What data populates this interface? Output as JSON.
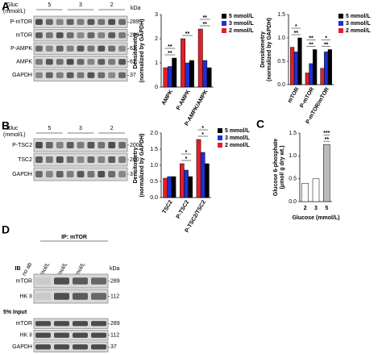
{
  "panels": [
    "A",
    "B",
    "C",
    "D"
  ],
  "blot_a": {
    "header": [
      "Gluc",
      "(mmol/L)"
    ],
    "lanes": [
      "5",
      "3",
      "2"
    ],
    "unit": "kDa",
    "rows": [
      {
        "label": "P-mTOR",
        "marker": 289
      },
      {
        "label": "mTOR",
        "marker": 289
      },
      {
        "label": "P-AMPK",
        "marker": 62
      },
      {
        "label": "AMPK",
        "marker": 62
      },
      {
        "label": "GAPDH",
        "marker": 37
      }
    ]
  },
  "blot_b": {
    "header": [
      "Gluc",
      "(mmol/L)"
    ],
    "lanes": [
      "5",
      "3",
      "2"
    ],
    "rows": [
      {
        "label": "P-TSC2",
        "marker": 200
      },
      {
        "label": "TSC2",
        "marker": 200
      },
      {
        "label": "GAPDH",
        "marker": 37
      }
    ]
  },
  "blot_d": {
    "ip": "IP: mTOR",
    "ib": "IB",
    "unit": "kDa",
    "lanes": [
      "no ab",
      "5 mmol/L",
      "3 mmol/L",
      "2 mmol/L"
    ],
    "rows": [
      {
        "label": "mTOR",
        "marker": 289
      },
      {
        "label": "HK II",
        "marker": 112
      }
    ],
    "input": "5% Input",
    "input_rows": [
      {
        "label": "mTOR",
        "marker": 289
      },
      {
        "label": "HK II",
        "marker": 112
      },
      {
        "label": "GAPDH",
        "marker": 37
      }
    ]
  },
  "chart_data": [
    {
      "type": "bar",
      "ylabel": [
        "Densitometry",
        "(normalized by GAPDH)"
      ],
      "categories": [
        "AMPK",
        "P-AMPK",
        "P-AMPK/AMPK"
      ],
      "series": [
        {
          "name": "5 mmol/L",
          "color": "#000000",
          "values": [
            1.2,
            1.1,
            0.8
          ]
        },
        {
          "name": "3 mmol/L",
          "color": "#1f2fd6",
          "values": [
            0.85,
            1.0,
            1.1
          ]
        },
        {
          "name": "2 mmol/L",
          "color": "#e0202a",
          "values": [
            0.8,
            2.0,
            2.4
          ]
        }
      ],
      "ylim": [
        0,
        3
      ],
      "yticks": [
        0,
        1,
        2,
        3
      ],
      "annotations": [
        {
          "text": "**",
          "category": 0
        },
        {
          "text": "**",
          "category": 0
        },
        {
          "text": "**",
          "category": 1
        },
        {
          "text": "**",
          "category": 2
        },
        {
          "text": "**",
          "category": 2
        }
      ]
    },
    {
      "type": "bar",
      "ylabel": [
        "Densitometry",
        "(normalized by GAPDH)"
      ],
      "categories": [
        "mTOR",
        "P-mTOR",
        "P-mTOR/mTOR"
      ],
      "series": [
        {
          "name": "5 mmol/L",
          "color": "#000000",
          "values": [
            1.0,
            0.75,
            0.75
          ]
        },
        {
          "name": "3 mmol/L",
          "color": "#1f2fd6",
          "values": [
            0.7,
            0.45,
            0.7
          ]
        },
        {
          "name": "2 mmol/L",
          "color": "#e0202a",
          "values": [
            0.8,
            0.25,
            0.35
          ]
        }
      ],
      "ylim": [
        0,
        1.5
      ],
      "yticks": [
        {
          "value": 0,
          "label": "0.0"
        },
        {
          "value": 0.5,
          "label": "0.5"
        },
        {
          "value": 1,
          "label": "1.0"
        },
        {
          "value": 1.5,
          "label": "1.5"
        }
      ],
      "annotations": [
        {
          "text": "**",
          "category": 0
        },
        {
          "text": "*",
          "category": 0
        },
        {
          "text": "**",
          "category": 1
        },
        {
          "text": "**",
          "category": 1
        },
        {
          "text": "**",
          "category": 2
        },
        {
          "text": "*",
          "category": 2
        }
      ]
    },
    {
      "type": "bar",
      "ylabel": [
        "Densitometry",
        "(normalized by GAPDH)"
      ],
      "categories": [
        "TSC2",
        "P-TSC2",
        "P-TSC2/TSC2"
      ],
      "series": [
        {
          "name": "5 mmol/L",
          "color": "#000000",
          "values": [
            0.65,
            0.65,
            1.05
          ]
        },
        {
          "name": "3 mmol/L",
          "color": "#1f2fd6",
          "values": [
            0.65,
            0.85,
            1.4
          ]
        },
        {
          "name": "2 mmol/L",
          "color": "#e0202a",
          "values": [
            0.6,
            1.05,
            1.8
          ]
        }
      ],
      "ylim": [
        0,
        2
      ],
      "yticks": [
        {
          "value": 0,
          "label": "0.0"
        },
        {
          "value": 0.5,
          "label": "0.5"
        },
        {
          "value": 1,
          "label": "1.0"
        },
        {
          "value": 1.5,
          "label": "1.5"
        },
        {
          "value": 2,
          "label": "2.0"
        }
      ],
      "annotations": [
        {
          "text": "*",
          "category": 1
        },
        {
          "text": "*",
          "category": 1
        },
        {
          "text": "*",
          "category": 2
        },
        {
          "text": "*",
          "category": 2
        }
      ]
    },
    {
      "type": "bar",
      "ylabel": [
        "Glucose 6-phosphate",
        "(μmol/ g dry wt.)"
      ],
      "xlabel": "Glucose (mmol/L)",
      "categories": [
        "2",
        "3",
        "5"
      ],
      "values": [
        0.4,
        0.5,
        1.25
      ],
      "color": "#ffffff",
      "ylim": [
        0,
        1.5
      ],
      "yticks": [
        {
          "value": 0,
          "label": "0.0"
        },
        {
          "value": 0.5,
          "label": "0.5"
        },
        {
          "value": 1,
          "label": "1.0"
        },
        {
          "value": 1.5,
          "label": "1.5"
        }
      ],
      "annotations": [
        {
          "text": "**",
          "category": 2
        },
        {
          "text": "***",
          "category": 2
        }
      ]
    }
  ]
}
